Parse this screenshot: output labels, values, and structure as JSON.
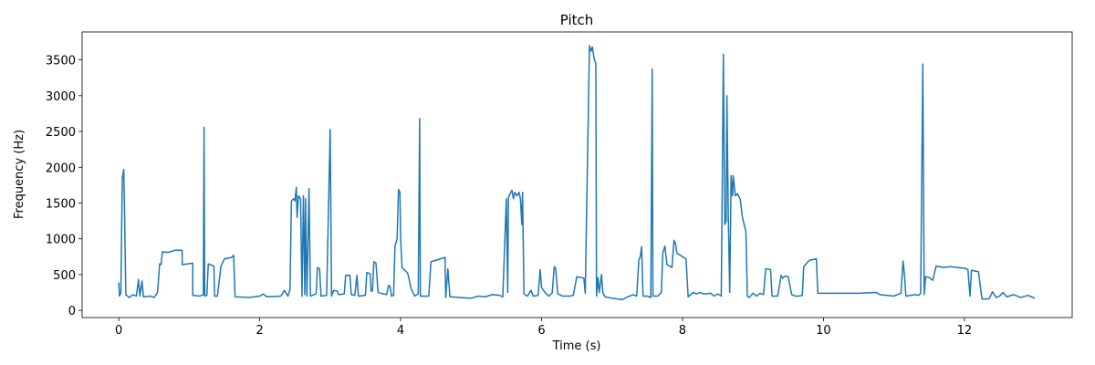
{
  "chart_data": {
    "type": "line",
    "title": "Pitch",
    "x_label": "Time (s)",
    "y_label": "Frequency (Hz)",
    "color": "#1f77b4",
    "xlim": [
      -0.52,
      13.53
    ],
    "ylim": [
      -100,
      3890
    ],
    "xticks": [
      0,
      2,
      4,
      6,
      8,
      10,
      12
    ],
    "yticks": [
      0,
      500,
      1000,
      1500,
      2000,
      2500,
      3000,
      3500
    ],
    "x": [
      0.0,
      0.01,
      0.03,
      0.05,
      0.07,
      0.08,
      0.1,
      0.15,
      0.2,
      0.25,
      0.28,
      0.3,
      0.33,
      0.35,
      0.45,
      0.5,
      0.55,
      0.58,
      0.6,
      0.62,
      0.7,
      0.8,
      0.9,
      0.9,
      1.05,
      1.05,
      1.15,
      1.2,
      1.21,
      1.22,
      1.25,
      1.27,
      1.35,
      1.36,
      1.4,
      1.45,
      1.5,
      1.6,
      1.63,
      1.65,
      1.85,
      2.0,
      2.05,
      2.1,
      2.3,
      2.35,
      2.4,
      2.43,
      2.45,
      2.48,
      2.5,
      2.52,
      2.53,
      2.55,
      2.58,
      2.6,
      2.62,
      2.64,
      2.65,
      2.67,
      2.7,
      2.72,
      2.8,
      2.82,
      2.85,
      2.87,
      2.95,
      3.0,
      3.02,
      3.05,
      3.1,
      3.12,
      3.2,
      3.22,
      3.28,
      3.3,
      3.35,
      3.38,
      3.4,
      3.5,
      3.52,
      3.57,
      3.58,
      3.6,
      3.62,
      3.65,
      3.68,
      3.8,
      3.83,
      3.85,
      3.87,
      3.9,
      3.92,
      3.95,
      3.97,
      3.99,
      4.0,
      4.02,
      4.1,
      4.15,
      4.2,
      4.25,
      4.27,
      4.28,
      4.35,
      4.4,
      4.43,
      4.5,
      4.6,
      4.63,
      4.64,
      4.67,
      4.7,
      5.0,
      5.1,
      5.2,
      5.3,
      5.4,
      5.45,
      5.5,
      5.52,
      5.53,
      5.55,
      5.58,
      5.6,
      5.62,
      5.65,
      5.68,
      5.7,
      5.72,
      5.73,
      5.75,
      5.8,
      5.85,
      5.88,
      5.95,
      5.98,
      6.0,
      6.05,
      6.1,
      6.15,
      6.18,
      6.2,
      6.23,
      6.3,
      6.4,
      6.45,
      6.5,
      6.55,
      6.6,
      6.62,
      6.65,
      6.68,
      6.7,
      6.72,
      6.75,
      6.77,
      6.78,
      6.8,
      6.82,
      6.85,
      6.87,
      6.9,
      7.0,
      7.15,
      7.2,
      7.3,
      7.35,
      7.38,
      7.4,
      7.42,
      7.44,
      7.5,
      7.55,
      7.57,
      7.58,
      7.65,
      7.7,
      7.72,
      7.75,
      7.78,
      7.85,
      7.88,
      7.9,
      7.92,
      8.0,
      8.05,
      8.08,
      8.15,
      8.2,
      8.25,
      8.3,
      8.4,
      8.45,
      8.5,
      8.55,
      8.58,
      8.6,
      8.62,
      8.63,
      8.65,
      8.67,
      8.69,
      8.71,
      8.72,
      8.75,
      8.78,
      8.82,
      8.85,
      8.9,
      8.92,
      8.95,
      9.0,
      9.05,
      9.1,
      9.15,
      9.18,
      9.25,
      9.27,
      9.35,
      9.4,
      9.42,
      9.45,
      9.5,
      9.55,
      9.6,
      9.65,
      9.7,
      9.72,
      9.8,
      9.9,
      9.92,
      10.5,
      10.75,
      10.8,
      11.0,
      11.1,
      11.13,
      11.15,
      11.17,
      11.3,
      11.35,
      11.38,
      11.41,
      11.43,
      11.45,
      11.5,
      11.55,
      11.6,
      11.7,
      11.8,
      12.0,
      12.05,
      12.08,
      12.1,
      12.2,
      12.25,
      12.35,
      12.4,
      12.45,
      12.5,
      12.55,
      12.6,
      12.7,
      12.8,
      12.9,
      12.95,
      13.0
    ],
    "values": [
      390,
      200,
      250,
      1850,
      1970,
      1500,
      220,
      180,
      220,
      200,
      430,
      200,
      410,
      190,
      200,
      180,
      250,
      650,
      640,
      820,
      810,
      840,
      840,
      640,
      660,
      210,
      200,
      220,
      2560,
      200,
      210,
      650,
      620,
      200,
      200,
      620,
      720,
      740,
      770,
      190,
      180,
      200,
      230,
      190,
      200,
      280,
      200,
      290,
      1530,
      1560,
      1530,
      1720,
      1300,
      1600,
      1560,
      200,
      1600,
      220,
      1560,
      200,
      1700,
      200,
      230,
      600,
      580,
      200,
      210,
      2530,
      200,
      280,
      270,
      220,
      230,
      490,
      490,
      220,
      210,
      490,
      200,
      210,
      530,
      510,
      270,
      270,
      680,
      660,
      250,
      220,
      350,
      330,
      200,
      210,
      900,
      1000,
      1690,
      1650,
      1000,
      600,
      520,
      300,
      200,
      230,
      2680,
      200,
      200,
      200,
      680,
      700,
      730,
      740,
      180,
      580,
      190,
      170,
      200,
      190,
      220,
      210,
      190,
      1560,
      250,
      1580,
      1620,
      1680,
      1560,
      1650,
      1600,
      1650,
      1560,
      1200,
      1650,
      230,
      200,
      280,
      200,
      210,
      570,
      320,
      250,
      200,
      240,
      610,
      590,
      230,
      200,
      200,
      210,
      470,
      460,
      450,
      240,
      2000,
      3700,
      3620,
      3680,
      3500,
      3450,
      200,
      460,
      250,
      500,
      250,
      190,
      170,
      150,
      180,
      220,
      200,
      700,
      750,
      890,
      200,
      200,
      180,
      3370,
      200,
      200,
      250,
      800,
      900,
      640,
      600,
      980,
      940,
      800,
      750,
      720,
      190,
      250,
      230,
      250,
      230,
      240,
      200,
      230,
      200,
      3580,
      1200,
      1250,
      3000,
      1300,
      250,
      1880,
      1600,
      1880,
      1600,
      1630,
      1550,
      1300,
      1100,
      200,
      180,
      240,
      200,
      240,
      220,
      580,
      570,
      200,
      200,
      490,
      450,
      480,
      470,
      220,
      200,
      200,
      210,
      610,
      700,
      720,
      240,
      240,
      250,
      220,
      200,
      240,
      690,
      500,
      200,
      220,
      210,
      240,
      3440,
      220,
      470,
      460,
      420,
      620,
      600,
      610,
      590,
      570,
      200,
      560,
      540,
      160,
      160,
      260,
      180,
      200,
      250,
      190,
      220,
      180,
      210,
      190,
      170
    ]
  }
}
